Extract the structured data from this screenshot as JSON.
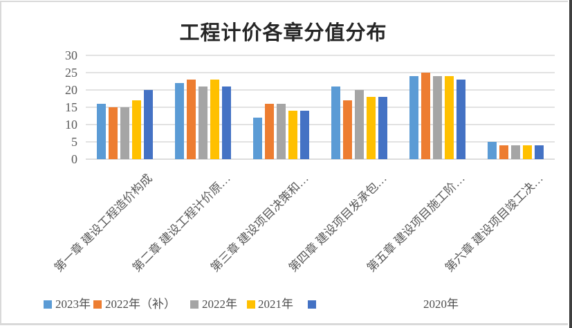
{
  "chart_data": {
    "type": "bar",
    "title": "工程计价各章分值分布",
    "categories": [
      "第一章 建设工程造价构成",
      "第二章 建设工程计价原…",
      "第三章 建设项目决策和…",
      "第四章 建设项目发承包…",
      "第五章 建设项目施工阶…",
      "第六章 建设项目竣工决…"
    ],
    "series": [
      {
        "name": "2023年",
        "color": "#5B9BD5",
        "values": [
          16,
          22,
          12,
          21,
          24,
          5
        ]
      },
      {
        "name": "2022年（补）",
        "color": "#ED7D31",
        "values": [
          15,
          23,
          16,
          17,
          25,
          4
        ]
      },
      {
        "name": "2022年",
        "color": "#A5A5A5",
        "values": [
          15,
          21,
          16,
          20,
          24,
          4
        ]
      },
      {
        "name": "2021年",
        "color": "#FFC000",
        "values": [
          17,
          23,
          14,
          18,
          24,
          4
        ]
      },
      {
        "name": "2020年",
        "color": "#4472C4",
        "values": [
          20,
          21,
          14,
          18,
          23,
          4
        ]
      }
    ],
    "y_axis": {
      "min": 0,
      "max": 30,
      "step": 5,
      "tick_labels": [
        "0",
        "5",
        "10",
        "15",
        "20",
        "25",
        "30"
      ]
    },
    "grid": true,
    "legend_position": "bottom",
    "colors": {
      "grid": "#E2E2E2",
      "axis_text": "#595959",
      "title_text": "#262626"
    }
  }
}
